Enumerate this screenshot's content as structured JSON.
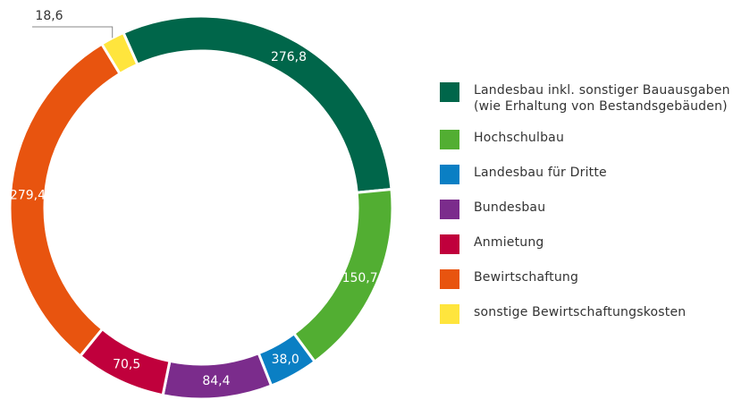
{
  "chart_data": {
    "type": "donut",
    "categories": [
      "Landesbau inkl. sonstiger Bauausgaben (wie Erhaltung von Bestandsgebäuden)",
      "Hochschulbau",
      "Landesbau für Dritte",
      "Bundesbau",
      "Anmietung",
      "Bewirtschaftung",
      "sonstige Bewirtschaftungskosten"
    ],
    "values": [
      276.8,
      150.7,
      38.0,
      84.4,
      70.5,
      279.4,
      18.6
    ],
    "value_labels": [
      "276,8",
      "150,7",
      "38,0",
      "84,4",
      "70,5",
      "279,4",
      "18,6"
    ],
    "colors": [
      "#00664a",
      "#52ae32",
      "#0a7fc4",
      "#7b2c8c",
      "#c0003c",
      "#e8540f",
      "#ffe53d"
    ],
    "legend": "right"
  }
}
